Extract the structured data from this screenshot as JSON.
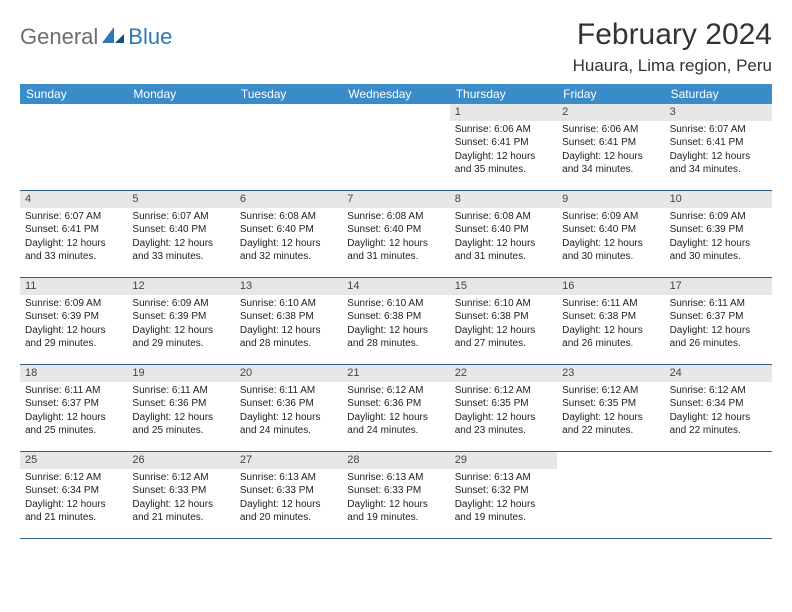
{
  "logo": {
    "general": "General",
    "blue": "Blue"
  },
  "title": {
    "month_year": "February 2024",
    "location": "Huaura, Lima region, Peru"
  },
  "day_names": [
    "Sunday",
    "Monday",
    "Tuesday",
    "Wednesday",
    "Thursday",
    "Friday",
    "Saturday"
  ],
  "colors": {
    "header_bg": "#3a8cc9",
    "row_border": "#2f5f8a",
    "daynum_bg": "#e7e7e7",
    "logo_gray": "#6b6e72",
    "logo_blue": "#2f77b8"
  },
  "weeks": [
    [
      {
        "empty": true
      },
      {
        "empty": true
      },
      {
        "empty": true
      },
      {
        "empty": true
      },
      {
        "num": "1",
        "sunrise": "Sunrise: 6:06 AM",
        "sunset": "Sunset: 6:41 PM",
        "daylight": "Daylight: 12 hours and 35 minutes."
      },
      {
        "num": "2",
        "sunrise": "Sunrise: 6:06 AM",
        "sunset": "Sunset: 6:41 PM",
        "daylight": "Daylight: 12 hours and 34 minutes."
      },
      {
        "num": "3",
        "sunrise": "Sunrise: 6:07 AM",
        "sunset": "Sunset: 6:41 PM",
        "daylight": "Daylight: 12 hours and 34 minutes."
      }
    ],
    [
      {
        "num": "4",
        "sunrise": "Sunrise: 6:07 AM",
        "sunset": "Sunset: 6:41 PM",
        "daylight": "Daylight: 12 hours and 33 minutes."
      },
      {
        "num": "5",
        "sunrise": "Sunrise: 6:07 AM",
        "sunset": "Sunset: 6:40 PM",
        "daylight": "Daylight: 12 hours and 33 minutes."
      },
      {
        "num": "6",
        "sunrise": "Sunrise: 6:08 AM",
        "sunset": "Sunset: 6:40 PM",
        "daylight": "Daylight: 12 hours and 32 minutes."
      },
      {
        "num": "7",
        "sunrise": "Sunrise: 6:08 AM",
        "sunset": "Sunset: 6:40 PM",
        "daylight": "Daylight: 12 hours and 31 minutes."
      },
      {
        "num": "8",
        "sunrise": "Sunrise: 6:08 AM",
        "sunset": "Sunset: 6:40 PM",
        "daylight": "Daylight: 12 hours and 31 minutes."
      },
      {
        "num": "9",
        "sunrise": "Sunrise: 6:09 AM",
        "sunset": "Sunset: 6:40 PM",
        "daylight": "Daylight: 12 hours and 30 minutes."
      },
      {
        "num": "10",
        "sunrise": "Sunrise: 6:09 AM",
        "sunset": "Sunset: 6:39 PM",
        "daylight": "Daylight: 12 hours and 30 minutes."
      }
    ],
    [
      {
        "num": "11",
        "sunrise": "Sunrise: 6:09 AM",
        "sunset": "Sunset: 6:39 PM",
        "daylight": "Daylight: 12 hours and 29 minutes."
      },
      {
        "num": "12",
        "sunrise": "Sunrise: 6:09 AM",
        "sunset": "Sunset: 6:39 PM",
        "daylight": "Daylight: 12 hours and 29 minutes."
      },
      {
        "num": "13",
        "sunrise": "Sunrise: 6:10 AM",
        "sunset": "Sunset: 6:38 PM",
        "daylight": "Daylight: 12 hours and 28 minutes."
      },
      {
        "num": "14",
        "sunrise": "Sunrise: 6:10 AM",
        "sunset": "Sunset: 6:38 PM",
        "daylight": "Daylight: 12 hours and 28 minutes."
      },
      {
        "num": "15",
        "sunrise": "Sunrise: 6:10 AM",
        "sunset": "Sunset: 6:38 PM",
        "daylight": "Daylight: 12 hours and 27 minutes."
      },
      {
        "num": "16",
        "sunrise": "Sunrise: 6:11 AM",
        "sunset": "Sunset: 6:38 PM",
        "daylight": "Daylight: 12 hours and 26 minutes."
      },
      {
        "num": "17",
        "sunrise": "Sunrise: 6:11 AM",
        "sunset": "Sunset: 6:37 PM",
        "daylight": "Daylight: 12 hours and 26 minutes."
      }
    ],
    [
      {
        "num": "18",
        "sunrise": "Sunrise: 6:11 AM",
        "sunset": "Sunset: 6:37 PM",
        "daylight": "Daylight: 12 hours and 25 minutes."
      },
      {
        "num": "19",
        "sunrise": "Sunrise: 6:11 AM",
        "sunset": "Sunset: 6:36 PM",
        "daylight": "Daylight: 12 hours and 25 minutes."
      },
      {
        "num": "20",
        "sunrise": "Sunrise: 6:11 AM",
        "sunset": "Sunset: 6:36 PM",
        "daylight": "Daylight: 12 hours and 24 minutes."
      },
      {
        "num": "21",
        "sunrise": "Sunrise: 6:12 AM",
        "sunset": "Sunset: 6:36 PM",
        "daylight": "Daylight: 12 hours and 24 minutes."
      },
      {
        "num": "22",
        "sunrise": "Sunrise: 6:12 AM",
        "sunset": "Sunset: 6:35 PM",
        "daylight": "Daylight: 12 hours and 23 minutes."
      },
      {
        "num": "23",
        "sunrise": "Sunrise: 6:12 AM",
        "sunset": "Sunset: 6:35 PM",
        "daylight": "Daylight: 12 hours and 22 minutes."
      },
      {
        "num": "24",
        "sunrise": "Sunrise: 6:12 AM",
        "sunset": "Sunset: 6:34 PM",
        "daylight": "Daylight: 12 hours and 22 minutes."
      }
    ],
    [
      {
        "num": "25",
        "sunrise": "Sunrise: 6:12 AM",
        "sunset": "Sunset: 6:34 PM",
        "daylight": "Daylight: 12 hours and 21 minutes."
      },
      {
        "num": "26",
        "sunrise": "Sunrise: 6:12 AM",
        "sunset": "Sunset: 6:33 PM",
        "daylight": "Daylight: 12 hours and 21 minutes."
      },
      {
        "num": "27",
        "sunrise": "Sunrise: 6:13 AM",
        "sunset": "Sunset: 6:33 PM",
        "daylight": "Daylight: 12 hours and 20 minutes."
      },
      {
        "num": "28",
        "sunrise": "Sunrise: 6:13 AM",
        "sunset": "Sunset: 6:33 PM",
        "daylight": "Daylight: 12 hours and 19 minutes."
      },
      {
        "num": "29",
        "sunrise": "Sunrise: 6:13 AM",
        "sunset": "Sunset: 6:32 PM",
        "daylight": "Daylight: 12 hours and 19 minutes."
      },
      {
        "empty": true
      },
      {
        "empty": true
      }
    ]
  ]
}
